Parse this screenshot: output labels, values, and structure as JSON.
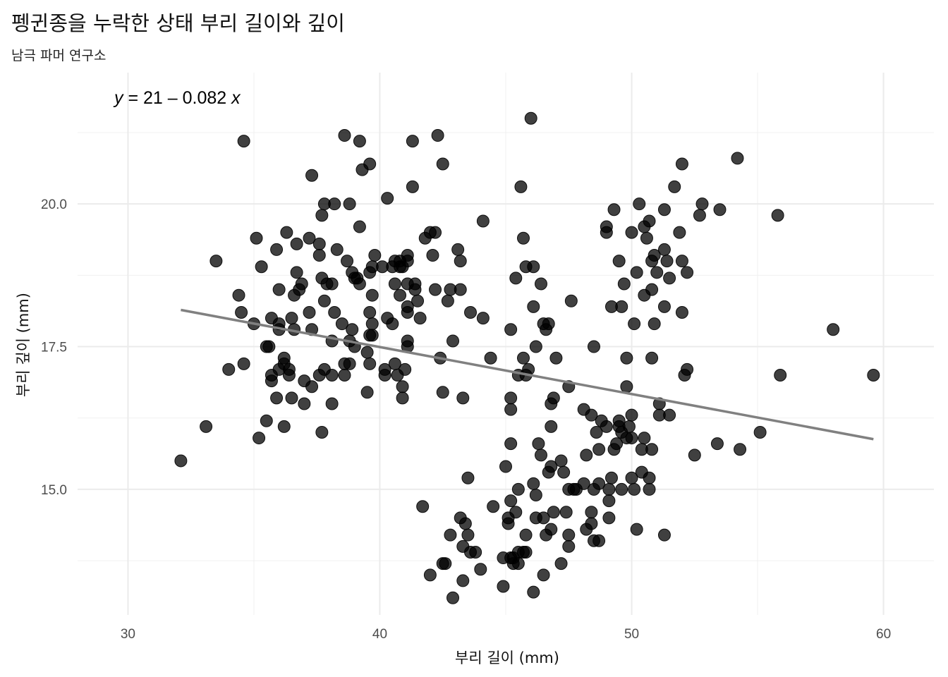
{
  "chart_data": {
    "type": "scatter",
    "title": "펭귄종을 누락한 상태 부리 길이와 깊이",
    "subtitle": "남극 파머 연구소",
    "xlabel": "부리 길이 (mm)",
    "ylabel": "부리 깊이 (mm)",
    "xlim": [
      28,
      62
    ],
    "ylim": [
      12.8,
      22.3
    ],
    "xticks": [
      30,
      40,
      50,
      60
    ],
    "yticks": [
      15.0,
      17.5,
      20.0
    ],
    "ytick_labels": [
      "15.0",
      "17.5",
      "20.0"
    ],
    "grid": true,
    "point_color": "#000000",
    "point_opacity": 0.75,
    "trend_line": {
      "color": "#808080",
      "intercept": 20.786,
      "slope": -0.08233,
      "x_range": [
        32.1,
        59.6
      ]
    },
    "equation_label": {
      "y_var": "y",
      "eq": " = 21 – 0.082 ",
      "x_var": "x"
    },
    "points": [
      [
        32.1,
        15.5
      ],
      [
        33.1,
        16.1
      ],
      [
        33.5,
        19.0
      ],
      [
        34.0,
        17.1
      ],
      [
        34.4,
        18.4
      ],
      [
        34.5,
        18.1
      ],
      [
        34.6,
        21.1
      ],
      [
        34.6,
        17.2
      ],
      [
        35.0,
        17.9
      ],
      [
        35.1,
        19.4
      ],
      [
        35.2,
        15.9
      ],
      [
        35.3,
        18.9
      ],
      [
        35.5,
        17.5
      ],
      [
        35.5,
        16.2
      ],
      [
        35.6,
        17.5
      ],
      [
        35.7,
        16.9
      ],
      [
        35.7,
        17.0
      ],
      [
        35.7,
        18.0
      ],
      [
        35.9,
        19.2
      ],
      [
        35.9,
        16.6
      ],
      [
        36.0,
        17.9
      ],
      [
        36.0,
        18.5
      ],
      [
        36.0,
        17.1
      ],
      [
        36.0,
        17.8
      ],
      [
        36.2,
        17.3
      ],
      [
        36.2,
        16.1
      ],
      [
        36.2,
        17.2
      ],
      [
        36.3,
        19.5
      ],
      [
        36.4,
        17.1
      ],
      [
        36.4,
        17.0
      ],
      [
        36.5,
        18.0
      ],
      [
        36.5,
        16.6
      ],
      [
        36.6,
        17.8
      ],
      [
        36.6,
        18.4
      ],
      [
        36.7,
        19.3
      ],
      [
        36.7,
        18.8
      ],
      [
        36.8,
        18.5
      ],
      [
        36.9,
        18.6
      ],
      [
        37.0,
        16.9
      ],
      [
        37.0,
        16.5
      ],
      [
        37.2,
        18.1
      ],
      [
        37.2,
        19.4
      ],
      [
        37.3,
        20.5
      ],
      [
        37.3,
        16.8
      ],
      [
        37.3,
        17.8
      ],
      [
        37.6,
        19.1
      ],
      [
        37.6,
        17.0
      ],
      [
        37.6,
        19.3
      ],
      [
        37.7,
        18.7
      ],
      [
        37.7,
        16.0
      ],
      [
        37.7,
        19.8
      ],
      [
        37.8,
        18.3
      ],
      [
        37.8,
        17.1
      ],
      [
        37.8,
        20.0
      ],
      [
        37.9,
        18.6
      ],
      [
        38.1,
        18.6
      ],
      [
        38.1,
        17.0
      ],
      [
        38.1,
        16.5
      ],
      [
        38.1,
        17.6
      ],
      [
        38.2,
        18.1
      ],
      [
        38.2,
        20.0
      ],
      [
        38.3,
        19.2
      ],
      [
        38.5,
        17.9
      ],
      [
        38.6,
        21.2
      ],
      [
        38.6,
        17.2
      ],
      [
        38.6,
        17.0
      ],
      [
        38.7,
        19.0
      ],
      [
        38.8,
        17.2
      ],
      [
        38.8,
        20.0
      ],
      [
        38.8,
        17.6
      ],
      [
        38.9,
        18.8
      ],
      [
        38.9,
        17.8
      ],
      [
        39.0,
        17.5
      ],
      [
        39.0,
        18.7
      ],
      [
        39.1,
        18.7
      ],
      [
        39.2,
        19.6
      ],
      [
        39.2,
        18.6
      ],
      [
        39.2,
        21.1
      ],
      [
        39.3,
        20.6
      ],
      [
        39.5,
        17.4
      ],
      [
        39.5,
        16.7
      ],
      [
        39.6,
        17.7
      ],
      [
        39.6,
        18.8
      ],
      [
        39.6,
        17.2
      ],
      [
        39.6,
        20.7
      ],
      [
        39.6,
        18.1
      ],
      [
        39.7,
        17.9
      ],
      [
        39.7,
        18.9
      ],
      [
        39.7,
        17.7
      ],
      [
        39.7,
        18.4
      ],
      [
        39.8,
        19.1
      ],
      [
        40.1,
        18.9
      ],
      [
        40.2,
        17.0
      ],
      [
        40.2,
        17.1
      ],
      [
        40.3,
        18.0
      ],
      [
        40.3,
        20.1
      ],
      [
        40.5,
        18.9
      ],
      [
        40.5,
        17.9
      ],
      [
        40.6,
        18.6
      ],
      [
        40.6,
        17.2
      ],
      [
        40.6,
        19.0
      ],
      [
        40.7,
        17.0
      ],
      [
        40.8,
        18.4
      ],
      [
        40.8,
        18.9
      ],
      [
        40.8,
        19.0
      ],
      [
        40.9,
        16.8
      ],
      [
        40.9,
        16.6
      ],
      [
        40.9,
        18.9
      ],
      [
        41.0,
        17.1
      ],
      [
        41.1,
        18.2
      ],
      [
        41.1,
        17.6
      ],
      [
        41.1,
        17.5
      ],
      [
        41.1,
        19.0
      ],
      [
        41.1,
        19.1
      ],
      [
        41.1,
        18.6
      ],
      [
        41.1,
        18.1
      ],
      [
        41.3,
        21.1
      ],
      [
        41.3,
        20.3
      ],
      [
        41.4,
        18.6
      ],
      [
        41.4,
        18.5
      ],
      [
        41.5,
        18.3
      ],
      [
        41.6,
        18.0
      ],
      [
        41.8,
        19.4
      ],
      [
        42.0,
        19.5
      ],
      [
        42.1,
        19.1
      ],
      [
        42.2,
        18.5
      ],
      [
        42.2,
        19.5
      ],
      [
        42.3,
        21.2
      ],
      [
        42.4,
        17.3
      ],
      [
        42.5,
        20.7
      ],
      [
        42.5,
        16.7
      ],
      [
        42.7,
        18.3
      ],
      [
        42.8,
        18.5
      ],
      [
        42.9,
        17.6
      ],
      [
        43.2,
        18.5
      ],
      [
        43.2,
        19.0
      ],
      [
        43.1,
        19.2
      ],
      [
        43.3,
        16.6
      ],
      [
        43.6,
        18.1
      ],
      [
        44.1,
        19.7
      ],
      [
        44.1,
        18.0
      ],
      [
        41.7,
        14.7
      ],
      [
        42.0,
        13.5
      ],
      [
        42.5,
        13.7
      ],
      [
        42.6,
        13.7
      ],
      [
        42.8,
        14.2
      ],
      [
        42.9,
        13.1
      ],
      [
        43.2,
        14.5
      ],
      [
        43.3,
        13.4
      ],
      [
        43.3,
        14.0
      ],
      [
        43.4,
        14.4
      ],
      [
        43.5,
        14.2
      ],
      [
        43.5,
        15.2
      ],
      [
        43.6,
        13.9
      ],
      [
        43.8,
        13.9
      ],
      [
        44.0,
        13.6
      ],
      [
        44.4,
        17.3
      ],
      [
        44.5,
        14.7
      ],
      [
        44.9,
        13.8
      ],
      [
        44.9,
        13.3
      ],
      [
        45.0,
        15.4
      ],
      [
        45.1,
        14.5
      ],
      [
        45.1,
        14.4
      ],
      [
        45.2,
        17.8
      ],
      [
        45.2,
        16.6
      ],
      [
        45.2,
        14.8
      ],
      [
        45.2,
        15.8
      ],
      [
        45.2,
        13.8
      ],
      [
        45.2,
        16.4
      ],
      [
        45.3,
        13.8
      ],
      [
        45.3,
        13.7
      ],
      [
        45.4,
        14.6
      ],
      [
        45.4,
        18.7
      ],
      [
        45.5,
        17.0
      ],
      [
        45.5,
        15.0
      ],
      [
        45.5,
        13.7
      ],
      [
        45.5,
        13.9
      ],
      [
        45.6,
        20.3
      ],
      [
        45.7,
        17.3
      ],
      [
        45.7,
        13.9
      ],
      [
        45.7,
        19.4
      ],
      [
        45.8,
        13.9
      ],
      [
        45.8,
        17.0
      ],
      [
        45.8,
        18.9
      ],
      [
        45.8,
        14.2
      ],
      [
        45.9,
        17.1
      ],
      [
        46.0,
        21.5
      ],
      [
        46.1,
        18.2
      ],
      [
        46.1,
        15.1
      ],
      [
        46.1,
        18.9
      ],
      [
        46.1,
        13.2
      ],
      [
        46.2,
        14.5
      ],
      [
        46.2,
        17.5
      ],
      [
        46.2,
        14.9
      ],
      [
        46.3,
        15.8
      ],
      [
        46.4,
        15.6
      ],
      [
        46.4,
        18.6
      ],
      [
        46.5,
        17.9
      ],
      [
        46.5,
        14.5
      ],
      [
        46.5,
        13.5
      ],
      [
        46.6,
        14.2
      ],
      [
        46.6,
        17.8
      ],
      [
        46.7,
        15.3
      ],
      [
        46.7,
        17.9
      ],
      [
        46.8,
        15.4
      ],
      [
        46.8,
        16.1
      ],
      [
        46.8,
        14.3
      ],
      [
        46.8,
        16.5
      ],
      [
        46.9,
        14.6
      ],
      [
        46.9,
        16.6
      ],
      [
        47.0,
        17.3
      ],
      [
        47.2,
        15.5
      ],
      [
        47.2,
        13.7
      ],
      [
        47.3,
        15.3
      ],
      [
        47.4,
        14.6
      ],
      [
        47.5,
        15.0
      ],
      [
        47.5,
        14.2
      ],
      [
        47.5,
        14.0
      ],
      [
        47.5,
        16.8
      ],
      [
        47.6,
        18.3
      ],
      [
        47.7,
        15.0
      ],
      [
        47.8,
        15.0
      ],
      [
        48.1,
        15.1
      ],
      [
        48.1,
        16.4
      ],
      [
        48.2,
        15.6
      ],
      [
        48.2,
        14.3
      ],
      [
        48.4,
        14.6
      ],
      [
        48.4,
        16.3
      ],
      [
        48.4,
        14.4
      ],
      [
        48.5,
        17.5
      ],
      [
        48.5,
        14.1
      ],
      [
        48.5,
        15.0
      ],
      [
        48.6,
        16.0
      ],
      [
        48.7,
        15.7
      ],
      [
        48.7,
        15.1
      ],
      [
        48.7,
        14.1
      ],
      [
        48.8,
        16.2
      ],
      [
        49.0,
        16.1
      ],
      [
        49.0,
        19.6
      ],
      [
        49.0,
        19.5
      ],
      [
        49.1,
        15.0
      ],
      [
        49.1,
        14.5
      ],
      [
        49.1,
        14.8
      ],
      [
        49.2,
        18.2
      ],
      [
        49.2,
        15.2
      ],
      [
        49.3,
        15.7
      ],
      [
        49.3,
        19.9
      ],
      [
        49.4,
        15.8
      ],
      [
        49.5,
        16.2
      ],
      [
        49.5,
        19.0
      ],
      [
        49.5,
        16.1
      ],
      [
        49.6,
        15.0
      ],
      [
        49.6,
        18.2
      ],
      [
        49.6,
        16.0
      ],
      [
        49.7,
        18.6
      ],
      [
        49.8,
        17.3
      ],
      [
        49.8,
        16.8
      ],
      [
        49.8,
        15.9
      ],
      [
        49.9,
        16.1
      ],
      [
        50.0,
        19.5
      ],
      [
        50.0,
        16.3
      ],
      [
        50.0,
        15.2
      ],
      [
        50.0,
        15.9
      ],
      [
        50.1,
        15.0
      ],
      [
        50.1,
        17.9
      ],
      [
        50.2,
        14.3
      ],
      [
        50.2,
        18.8
      ],
      [
        50.3,
        20.0
      ],
      [
        50.4,
        15.3
      ],
      [
        50.4,
        15.7
      ],
      [
        50.5,
        18.4
      ],
      [
        50.5,
        15.9
      ],
      [
        50.5,
        19.6
      ],
      [
        50.6,
        19.4
      ],
      [
        50.7,
        15.0
      ],
      [
        50.7,
        19.7
      ],
      [
        50.7,
        15.2
      ],
      [
        50.8,
        15.7
      ],
      [
        50.8,
        17.3
      ],
      [
        50.8,
        19.0
      ],
      [
        50.8,
        18.5
      ],
      [
        50.9,
        17.9
      ],
      [
        50.9,
        19.1
      ],
      [
        51.0,
        18.8
      ],
      [
        51.1,
        16.5
      ],
      [
        51.1,
        16.3
      ],
      [
        51.3,
        19.2
      ],
      [
        51.3,
        18.2
      ],
      [
        51.3,
        19.9
      ],
      [
        51.3,
        14.2
      ],
      [
        51.4,
        19.0
      ],
      [
        51.5,
        18.7
      ],
      [
        51.5,
        16.3
      ],
      [
        51.7,
        20.3
      ],
      [
        51.9,
        19.5
      ],
      [
        52.0,
        18.1
      ],
      [
        52.0,
        19.0
      ],
      [
        52.0,
        20.7
      ],
      [
        52.1,
        17.0
      ],
      [
        52.2,
        17.1
      ],
      [
        52.2,
        18.8
      ],
      [
        52.5,
        15.6
      ],
      [
        52.7,
        19.8
      ],
      [
        52.8,
        20.0
      ],
      [
        53.4,
        15.8
      ],
      [
        53.5,
        19.9
      ],
      [
        54.2,
        20.8
      ],
      [
        54.3,
        15.7
      ],
      [
        55.1,
        16.0
      ],
      [
        55.8,
        19.8
      ],
      [
        55.9,
        17.0
      ],
      [
        58.0,
        17.8
      ],
      [
        59.6,
        17.0
      ]
    ]
  }
}
